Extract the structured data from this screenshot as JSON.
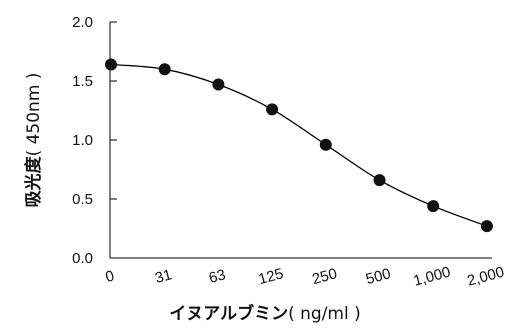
{
  "chart_data": {
    "type": "line",
    "title": "",
    "xlabel": "イヌアルブミン",
    "xlabel_unit": "( ng/ml )",
    "ylabel": "吸光度",
    "ylabel_unit": "( 450nm )",
    "x_tick_labels": [
      "0",
      "31",
      "63",
      "125",
      "250",
      "500",
      "1,000",
      "2,000"
    ],
    "x": [
      0,
      31,
      63,
      125,
      250,
      500,
      1000,
      2000
    ],
    "series": [
      {
        "values": [
          1.64,
          1.6,
          1.47,
          1.26,
          0.96,
          0.66,
          0.44,
          0.27
        ]
      }
    ],
    "yticks": [
      "0.0",
      "0.5",
      "1.0",
      "1.5",
      "2.0"
    ],
    "ytick_values": [
      0.0,
      0.5,
      1.0,
      1.5,
      2.0
    ],
    "ylim": [
      0,
      2.0
    ],
    "x_scale": "ordinal (log-like dilution series)",
    "grid": false,
    "legend": "none",
    "marker": "filled-circle",
    "line_color": "#000000",
    "marker_color": "#111111"
  }
}
